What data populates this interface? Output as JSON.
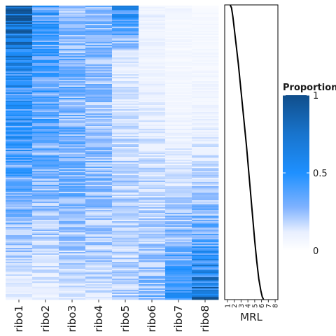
{
  "chart_data": [
    {
      "type": "heatmap",
      "title": "",
      "xlabel": "",
      "ylabel": "",
      "columns": [
        "ribo1",
        "ribo2",
        "ribo3",
        "ribo4",
        "ribo5",
        "ribo6",
        "ribo7",
        "ribo8"
      ],
      "rows_description_note": "",
      "column_mean_proportion_top_to_bottom": [
        [
          0.85,
          0.4,
          0.22,
          0.3,
          0.5,
          0.1,
          0.07,
          0.05
        ],
        [
          0.55,
          0.38,
          0.3,
          0.25,
          0.12,
          0.08,
          0.05,
          0.06
        ],
        [
          0.45,
          0.35,
          0.3,
          0.25,
          0.15,
          0.12,
          0.08,
          0.1
        ],
        [
          0.35,
          0.28,
          0.3,
          0.28,
          0.2,
          0.18,
          0.15,
          0.18
        ],
        [
          0.22,
          0.2,
          0.22,
          0.22,
          0.18,
          0.2,
          0.28,
          0.35
        ],
        [
          0.1,
          0.1,
          0.12,
          0.15,
          0.2,
          0.3,
          0.45,
          0.8
        ]
      ],
      "color_scale": {
        "low": "#ffffff",
        "mid": "#1e90ff",
        "high": "#104e8b"
      },
      "legend": {
        "title": "Proportion",
        "ticks": [
          "0",
          "0.5",
          "1"
        ],
        "range": [
          0,
          1
        ],
        "placement": "right"
      }
    },
    {
      "type": "line",
      "xlabel": "MRL",
      "x_ticks": [
        "1",
        "2",
        "3",
        "4",
        "5",
        "6",
        "7",
        "8"
      ],
      "xlim": [
        0.6,
        8.4
      ],
      "series": [
        {
          "x": [
            1.4,
            1.6,
            1.8,
            2.0,
            2.3,
            2.6,
            2.9,
            3.2,
            3.5,
            3.8,
            4.1,
            4.4,
            4.7,
            5.0,
            5.3,
            5.6,
            5.9,
            6.1,
            6.3
          ],
          "y_fraction_from_top": [
            0.0,
            0.01,
            0.04,
            0.08,
            0.14,
            0.2,
            0.27,
            0.34,
            0.41,
            0.48,
            0.56,
            0.64,
            0.72,
            0.8,
            0.87,
            0.93,
            0.97,
            0.99,
            1.0
          ],
          "color": "#000000"
        }
      ]
    }
  ],
  "colors": {
    "axis": "#000000",
    "background": "#ffffff"
  }
}
